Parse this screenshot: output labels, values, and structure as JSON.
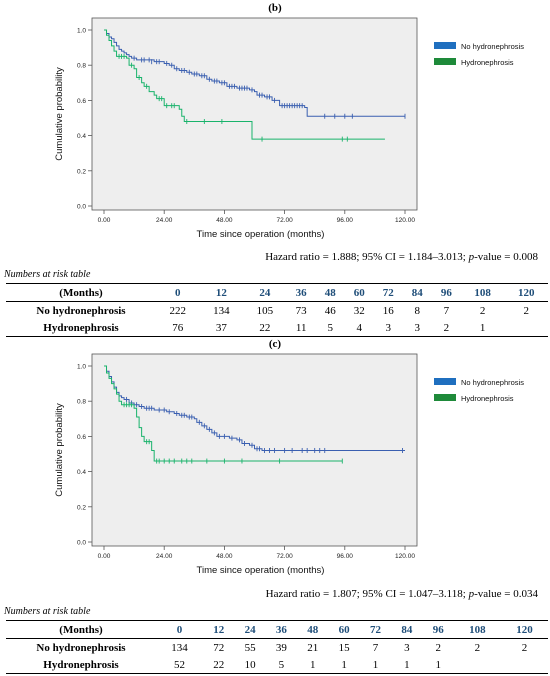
{
  "colors": {
    "no_hydro": "#3a5fb0",
    "hydro": "#19b36b",
    "legend_no": "#1f6fbf",
    "legend_hydro": "#1e8a3a",
    "plot_bg": "#eeeeee",
    "risk_header": "#1f4e79"
  },
  "panels": [
    {
      "label": "(b)",
      "hazard": {
        "prefix": "Hazard ratio = 1.888; 95% CI = 1.184–3.013; ",
        "p_label": "p",
        "suffix": "-value = 0.008"
      },
      "risk_title": "Numbers at risk table",
      "risk_table": {
        "header_label": "(Months)",
        "months": [
          "0",
          "12",
          "24",
          "36",
          "48",
          "60",
          "72",
          "84",
          "96",
          "108",
          "120"
        ],
        "rows": [
          {
            "label": "No hydronephrosis",
            "values": [
              "222",
              "134",
              "105",
              "73",
              "46",
              "32",
              "16",
              "8",
              "7",
              "2",
              "2"
            ]
          },
          {
            "label": "Hydronephrosis",
            "values": [
              "76",
              "37",
              "22",
              "11",
              "5",
              "4",
              "3",
              "3",
              "2",
              "1",
              ""
            ]
          }
        ]
      }
    },
    {
      "label": "(c)",
      "hazard": {
        "prefix": "Hazard ratio = 1.807; 95% CI = 1.047–3.118; ",
        "p_label": "p",
        "suffix": "-value = 0.034"
      },
      "risk_title": "Numbers at risk table",
      "risk_table": {
        "header_label": "(Months)",
        "months": [
          "0",
          "12",
          "24",
          "36",
          "48",
          "60",
          "72",
          "84",
          "96",
          "108",
          "120"
        ],
        "rows": [
          {
            "label": "No hydronephrosis",
            "values": [
              "134",
              "72",
              "55",
              "39",
              "21",
              "15",
              "7",
              "3",
              "2",
              "2",
              "2"
            ]
          },
          {
            "label": "Hydronephrosis",
            "values": [
              "52",
              "22",
              "10",
              "5",
              "1",
              "1",
              "1",
              "1",
              "1",
              "",
              ""
            ]
          }
        ]
      }
    }
  ],
  "chart_data": [
    {
      "type": "line",
      "panel": "(b)",
      "xlabel": "Time since operation (months)",
      "ylabel": "Cumulative probability",
      "xlim": [
        0,
        120
      ],
      "ylim": [
        0,
        1.0
      ],
      "xticks": [
        "0.00",
        "24.00",
        "48.00",
        "72.00",
        "96.00",
        "120.00"
      ],
      "yticks": [
        "0.0",
        "0.2",
        "0.4",
        "0.6",
        "0.8",
        "1.0"
      ],
      "legend_position": "top-right",
      "series": [
        {
          "name": "No hydronephrosis",
          "color_key": "no_hydro",
          "steps": [
            [
              0,
              1.0
            ],
            [
              1,
              0.98
            ],
            [
              2,
              0.96
            ],
            [
              3,
              0.95
            ],
            [
              4,
              0.93
            ],
            [
              5,
              0.91
            ],
            [
              6,
              0.89
            ],
            [
              7,
              0.88
            ],
            [
              8,
              0.87
            ],
            [
              9,
              0.86
            ],
            [
              10,
              0.85
            ],
            [
              11,
              0.84
            ],
            [
              13,
              0.83
            ],
            [
              17,
              0.83
            ],
            [
              20,
              0.82
            ],
            [
              24,
              0.81
            ],
            [
              26,
              0.8
            ],
            [
              28,
              0.78
            ],
            [
              30,
              0.77
            ],
            [
              33,
              0.76
            ],
            [
              35,
              0.75
            ],
            [
              38,
              0.74
            ],
            [
              41,
              0.72
            ],
            [
              43,
              0.71
            ],
            [
              46,
              0.7
            ],
            [
              49,
              0.68
            ],
            [
              53,
              0.67
            ],
            [
              58,
              0.66
            ],
            [
              60,
              0.65
            ],
            [
              61,
              0.63
            ],
            [
              64,
              0.62
            ],
            [
              67,
              0.6
            ],
            [
              70,
              0.57
            ],
            [
              80,
              0.56
            ],
            [
              81,
              0.51
            ],
            [
              120,
              0.51
            ]
          ],
          "censored": [
            [
              12,
              0.84
            ],
            [
              15,
              0.83
            ],
            [
              16,
              0.83
            ],
            [
              18,
              0.83
            ],
            [
              19,
              0.82
            ],
            [
              21,
              0.82
            ],
            [
              22,
              0.82
            ],
            [
              25,
              0.81
            ],
            [
              27,
              0.8
            ],
            [
              29,
              0.78
            ],
            [
              31,
              0.77
            ],
            [
              32,
              0.77
            ],
            [
              34,
              0.76
            ],
            [
              36,
              0.75
            ],
            [
              37,
              0.75
            ],
            [
              39,
              0.74
            ],
            [
              40,
              0.74
            ],
            [
              42,
              0.72
            ],
            [
              44,
              0.71
            ],
            [
              45,
              0.71
            ],
            [
              47,
              0.7
            ],
            [
              48,
              0.7
            ],
            [
              50,
              0.68
            ],
            [
              51,
              0.68
            ],
            [
              52,
              0.68
            ],
            [
              54,
              0.67
            ],
            [
              55,
              0.67
            ],
            [
              56,
              0.67
            ],
            [
              57,
              0.67
            ],
            [
              59,
              0.66
            ],
            [
              62,
              0.63
            ],
            [
              63,
              0.63
            ],
            [
              65,
              0.62
            ],
            [
              66,
              0.62
            ],
            [
              68,
              0.6
            ],
            [
              71,
              0.57
            ],
            [
              72,
              0.57
            ],
            [
              73,
              0.57
            ],
            [
              74,
              0.57
            ],
            [
              75,
              0.57
            ],
            [
              76,
              0.57
            ],
            [
              77,
              0.57
            ],
            [
              78,
              0.57
            ],
            [
              79,
              0.57
            ],
            [
              88,
              0.51
            ],
            [
              92,
              0.51
            ],
            [
              96,
              0.51
            ],
            [
              99,
              0.51
            ],
            [
              120,
              0.51
            ]
          ]
        },
        {
          "name": "Hydronephrosis",
          "color_key": "hydro",
          "steps": [
            [
              0,
              1.0
            ],
            [
              1,
              0.97
            ],
            [
              2,
              0.94
            ],
            [
              3,
              0.91
            ],
            [
              4,
              0.88
            ],
            [
              5,
              0.85
            ],
            [
              9,
              0.84
            ],
            [
              10,
              0.8
            ],
            [
              12,
              0.78
            ],
            [
              13,
              0.73
            ],
            [
              15,
              0.7
            ],
            [
              16,
              0.68
            ],
            [
              18,
              0.65
            ],
            [
              20,
              0.63
            ],
            [
              21,
              0.61
            ],
            [
              24,
              0.57
            ],
            [
              30,
              0.55
            ],
            [
              31,
              0.51
            ],
            [
              32,
              0.48
            ],
            [
              58,
              0.48
            ],
            [
              59,
              0.38
            ],
            [
              112,
              0.38
            ]
          ],
          "censored": [
            [
              6,
              0.85
            ],
            [
              7,
              0.85
            ],
            [
              8,
              0.85
            ],
            [
              11,
              0.8
            ],
            [
              14,
              0.73
            ],
            [
              17,
              0.68
            ],
            [
              22,
              0.61
            ],
            [
              23,
              0.61
            ],
            [
              25,
              0.57
            ],
            [
              27,
              0.57
            ],
            [
              28,
              0.57
            ],
            [
              33,
              0.48
            ],
            [
              40,
              0.48
            ],
            [
              47,
              0.48
            ],
            [
              63,
              0.38
            ],
            [
              95,
              0.38
            ],
            [
              97,
              0.38
            ]
          ]
        }
      ]
    },
    {
      "type": "line",
      "panel": "(c)",
      "xlabel": "Time since operation (months)",
      "ylabel": "Cumulative probability",
      "xlim": [
        0,
        120
      ],
      "ylim": [
        0,
        1.0
      ],
      "xticks": [
        "0.00",
        "24.00",
        "48.00",
        "72.00",
        "96.00",
        "120.00"
      ],
      "yticks": [
        "0.0",
        "0.2",
        "0.4",
        "0.6",
        "0.8",
        "1.0"
      ],
      "legend_position": "top-right",
      "series": [
        {
          "name": "No hydronephrosis",
          "color_key": "no_hydro",
          "steps": [
            [
              0,
              1.0
            ],
            [
              1,
              0.97
            ],
            [
              2,
              0.94
            ],
            [
              3,
              0.91
            ],
            [
              4,
              0.88
            ],
            [
              5,
              0.85
            ],
            [
              6,
              0.83
            ],
            [
              7,
              0.82
            ],
            [
              8,
              0.81
            ],
            [
              10,
              0.79
            ],
            [
              12,
              0.78
            ],
            [
              14,
              0.77
            ],
            [
              16,
              0.76
            ],
            [
              20,
              0.75
            ],
            [
              25,
              0.74
            ],
            [
              28,
              0.73
            ],
            [
              30,
              0.72
            ],
            [
              33,
              0.71
            ],
            [
              36,
              0.7
            ],
            [
              37,
              0.68
            ],
            [
              39,
              0.66
            ],
            [
              41,
              0.64
            ],
            [
              43,
              0.62
            ],
            [
              45,
              0.6
            ],
            [
              50,
              0.59
            ],
            [
              53,
              0.58
            ],
            [
              55,
              0.56
            ],
            [
              58,
              0.55
            ],
            [
              60,
              0.53
            ],
            [
              63,
              0.52
            ],
            [
              120,
              0.52
            ]
          ],
          "censored": [
            [
              9,
              0.81
            ],
            [
              11,
              0.79
            ],
            [
              13,
              0.78
            ],
            [
              15,
              0.77
            ],
            [
              17,
              0.76
            ],
            [
              18,
              0.76
            ],
            [
              19,
              0.76
            ],
            [
              22,
              0.75
            ],
            [
              24,
              0.75
            ],
            [
              26,
              0.74
            ],
            [
              29,
              0.73
            ],
            [
              31,
              0.72
            ],
            [
              32,
              0.72
            ],
            [
              34,
              0.71
            ],
            [
              35,
              0.71
            ],
            [
              38,
              0.68
            ],
            [
              40,
              0.66
            ],
            [
              42,
              0.64
            ],
            [
              44,
              0.62
            ],
            [
              46,
              0.6
            ],
            [
              48,
              0.6
            ],
            [
              51,
              0.59
            ],
            [
              54,
              0.58
            ],
            [
              56,
              0.56
            ],
            [
              59,
              0.55
            ],
            [
              61,
              0.53
            ],
            [
              62,
              0.53
            ],
            [
              64,
              0.52
            ],
            [
              66,
              0.52
            ],
            [
              68,
              0.52
            ],
            [
              72,
              0.52
            ],
            [
              75,
              0.52
            ],
            [
              79,
              0.52
            ],
            [
              81,
              0.52
            ],
            [
              84,
              0.52
            ],
            [
              86,
              0.52
            ],
            [
              88,
              0.52
            ],
            [
              119,
              0.52
            ]
          ]
        },
        {
          "name": "Hydronephrosis",
          "color_key": "hydro",
          "steps": [
            [
              0,
              1.0
            ],
            [
              1,
              0.96
            ],
            [
              2,
              0.93
            ],
            [
              3,
              0.9
            ],
            [
              4,
              0.87
            ],
            [
              5,
              0.84
            ],
            [
              6,
              0.8
            ],
            [
              7,
              0.78
            ],
            [
              12,
              0.76
            ],
            [
              13,
              0.71
            ],
            [
              14,
              0.65
            ],
            [
              15,
              0.6
            ],
            [
              16,
              0.57
            ],
            [
              19,
              0.52
            ],
            [
              20,
              0.46
            ],
            [
              95,
              0.46
            ]
          ],
          "censored": [
            [
              8,
              0.78
            ],
            [
              9,
              0.78
            ],
            [
              10,
              0.78
            ],
            [
              11,
              0.78
            ],
            [
              17,
              0.57
            ],
            [
              18,
              0.57
            ],
            [
              21,
              0.46
            ],
            [
              22,
              0.46
            ],
            [
              24,
              0.46
            ],
            [
              26,
              0.46
            ],
            [
              28,
              0.46
            ],
            [
              31,
              0.46
            ],
            [
              33,
              0.46
            ],
            [
              35,
              0.46
            ],
            [
              41,
              0.46
            ],
            [
              48,
              0.46
            ],
            [
              55,
              0.46
            ],
            [
              70,
              0.46
            ],
            [
              95,
              0.46
            ]
          ]
        }
      ]
    }
  ]
}
